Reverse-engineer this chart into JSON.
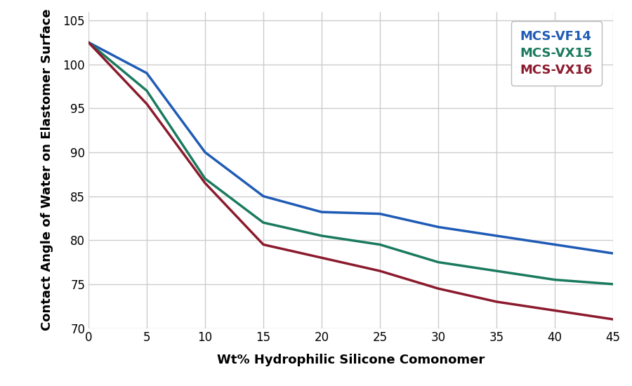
{
  "xlabel": "Wt% Hydrophilic Silicone Comonomer",
  "ylabel": "Contact Angle of Water on Elastomer Surface",
  "xlim": [
    0,
    45
  ],
  "ylim": [
    70,
    106
  ],
  "xticks": [
    0,
    5,
    10,
    15,
    20,
    25,
    30,
    35,
    40,
    45
  ],
  "yticks": [
    70,
    75,
    80,
    85,
    90,
    95,
    100,
    105
  ],
  "series": [
    {
      "label": "MCS-VF14",
      "color": "#1F5BB5",
      "x": [
        0,
        5,
        10,
        15,
        20,
        25,
        30,
        35,
        40,
        45
      ],
      "y": [
        102.5,
        99.0,
        90.0,
        85.0,
        83.2,
        83.0,
        81.5,
        80.5,
        79.5,
        78.5
      ]
    },
    {
      "label": "MCS-VX15",
      "color": "#1A7A5E",
      "x": [
        0,
        5,
        10,
        15,
        20,
        25,
        30,
        35,
        40,
        45
      ],
      "y": [
        102.5,
        97.0,
        87.0,
        82.0,
        80.5,
        79.5,
        77.5,
        76.5,
        75.5,
        75.0
      ]
    },
    {
      "label": "MCS-VX16",
      "color": "#8B1A2D",
      "x": [
        0,
        5,
        10,
        15,
        20,
        25,
        30,
        35,
        40,
        45
      ],
      "y": [
        102.5,
        95.5,
        86.5,
        79.5,
        78.0,
        76.5,
        74.5,
        73.0,
        72.0,
        71.0
      ]
    }
  ],
  "grid_color": "#cccccc",
  "bg_color": "#ffffff",
  "line_width": 2.5,
  "ylabel_fontsize": 13,
  "xlabel_fontsize": 13,
  "tick_fontsize": 12,
  "legend_fontsize": 13
}
